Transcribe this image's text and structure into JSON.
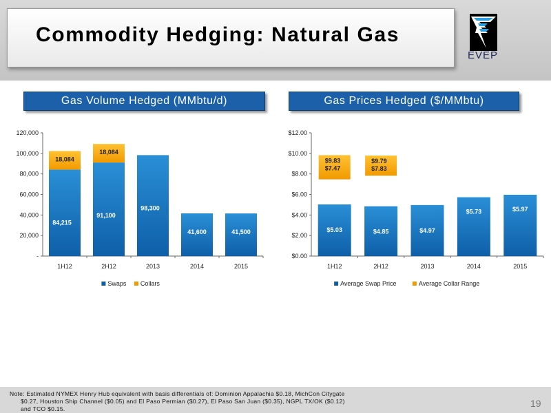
{
  "slide": {
    "title": "Commodity Hedging: Natural Gas",
    "logo_text": "EVEP",
    "page_number": "19"
  },
  "panels": {
    "left_title": "Gas Volume Hedged (MMbtu/d)",
    "right_title": "Gas Prices Hedged ($/MMbtu)"
  },
  "footnote": {
    "lines": [
      "Note: Estimated NYMEX Henry Hub equivalent with basis differentials of: Dominion Appalachia $0.18, MichCon Citygate",
      "$0.27, Houston Ship Channel ($0.05) and El Paso Permian ($0.27), El Paso San Juan ($0.35), NGPL TX/OK ($0.12)",
      "and TCO $0.15."
    ]
  },
  "colors": {
    "swap_top": "#2a8fd6",
    "swap_bottom": "#0e5fa8",
    "collar_top": "#ffc233",
    "collar_bottom": "#f29a00",
    "panel_bg": "#1b60a8"
  },
  "chart_data": [
    {
      "type": "bar",
      "stacked": true,
      "categories": [
        "1H12",
        "2H12",
        "2013",
        "2014",
        "2015"
      ],
      "series": [
        {
          "name": "Swaps",
          "values": [
            84215,
            91100,
            98300,
            41600,
            41500
          ],
          "labels": [
            "84,215",
            "91,100",
            "98,300",
            "41,600",
            "41,500"
          ]
        },
        {
          "name": "Collars",
          "values": [
            18084,
            18084,
            0,
            0,
            0
          ],
          "labels": [
            "18,084",
            "18,084",
            "",
            "",
            ""
          ]
        }
      ],
      "yticks": [
        "-",
        "20,000",
        "40,000",
        "60,000",
        "80,000",
        "100,000",
        "120,000"
      ],
      "ylim": [
        0,
        120000
      ],
      "legend_position": "bottom"
    },
    {
      "type": "bar",
      "categories": [
        "1H12",
        "2H12",
        "2013",
        "2014",
        "2015"
      ],
      "series": [
        {
          "name": "Average Swap Price",
          "values": [
            5.03,
            4.85,
            4.97,
            5.73,
            5.97
          ],
          "labels": [
            "$5.03",
            "$4.85",
            "$4.97",
            "$5.73",
            "$5.97"
          ]
        },
        {
          "name": "Average Collar Range",
          "ranges": [
            [
              7.47,
              9.83
            ],
            [
              7.83,
              9.79
            ],
            null,
            null,
            null
          ],
          "labels": [
            [
              "$9.83",
              "$7.47"
            ],
            [
              "$9.79",
              "$7.83"
            ],
            null,
            null,
            null
          ]
        }
      ],
      "yticks": [
        "$0.00",
        "$2.00",
        "$4.00",
        "$6.00",
        "$8.00",
        "$10.00",
        "$12.00"
      ],
      "ylim": [
        0,
        12
      ],
      "legend_position": "bottom"
    }
  ]
}
